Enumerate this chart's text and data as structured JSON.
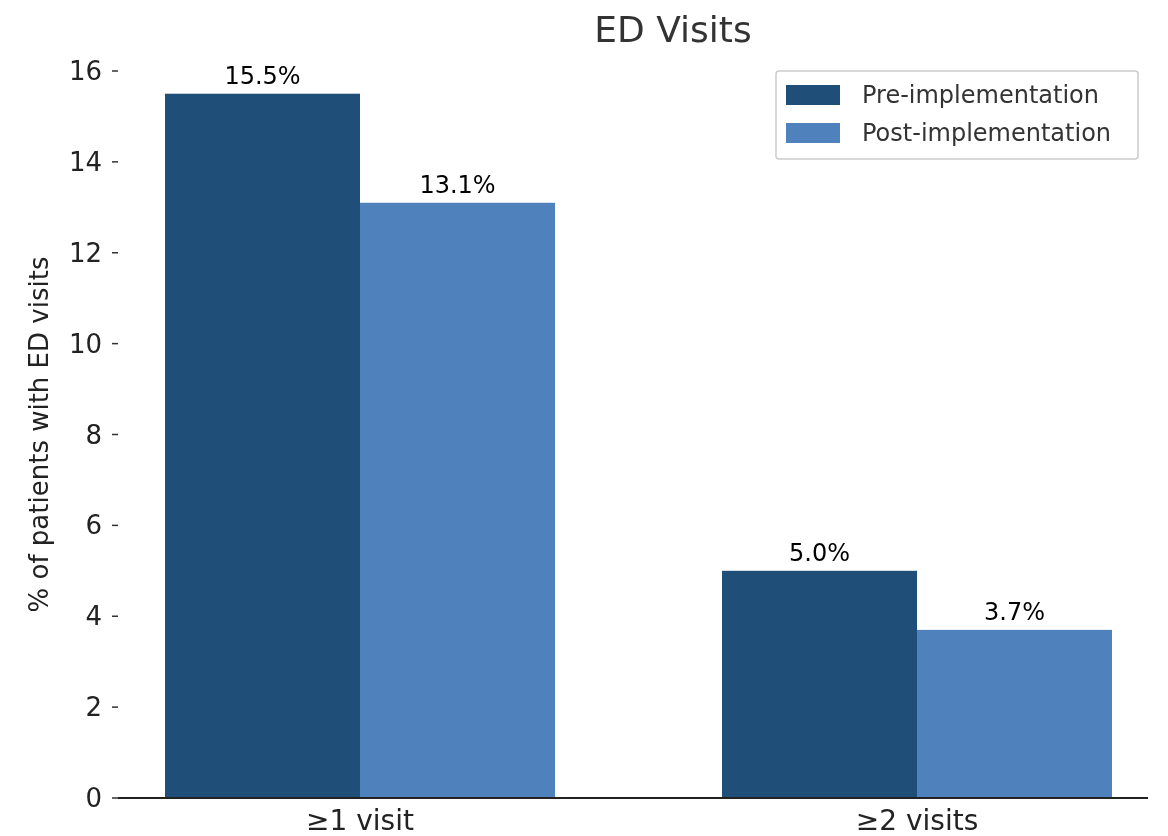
{
  "chart_data": {
    "type": "bar",
    "title": "ED Visits",
    "ylabel": "% of patients with ED visits",
    "categories": [
      "≥1 visit",
      "≥2 visits"
    ],
    "series": [
      {
        "name": "Pre-implementation",
        "color": "#1f4e79",
        "values": [
          15.5,
          5.0
        ],
        "value_labels": [
          "15.5%",
          "5.0%"
        ]
      },
      {
        "name": "Post-implementation",
        "color": "#4f81bd",
        "values": [
          13.1,
          3.7
        ],
        "value_labels": [
          "13.1%",
          "3.7%"
        ]
      }
    ],
    "ylim": [
      0,
      16
    ],
    "yticks": [
      0,
      2,
      4,
      6,
      8,
      10,
      12,
      14,
      16
    ],
    "grid": false,
    "legend": "top right"
  }
}
